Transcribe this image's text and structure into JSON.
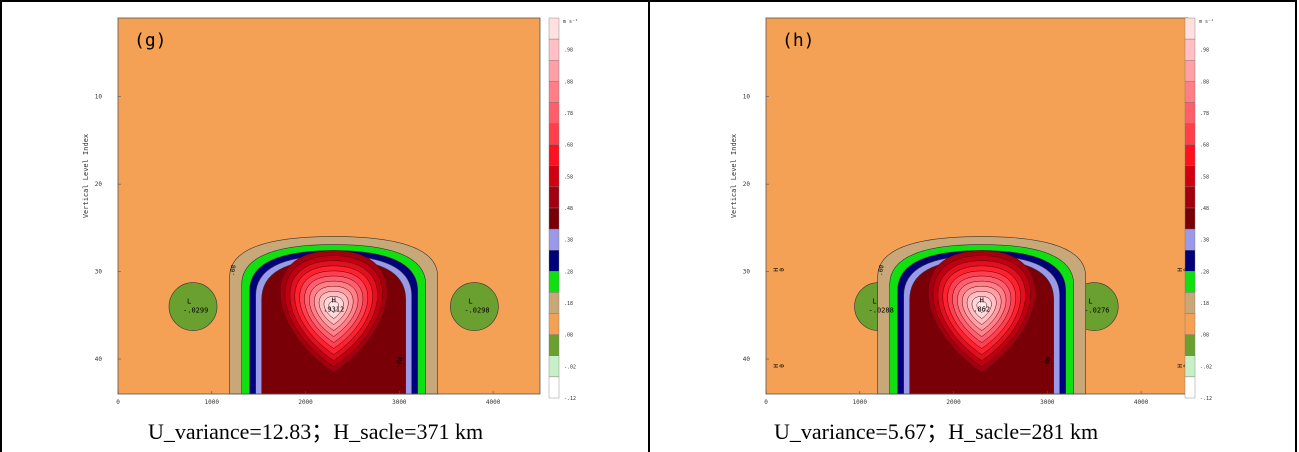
{
  "panels": [
    {
      "id": "g",
      "label": "(g)",
      "caption": "U_variance=12.83；H_sacle=371 km",
      "center_label": "H",
      "center_value": ".9312",
      "left_low": {
        "label": "L",
        "value": "-.0299"
      },
      "right_low": {
        "label": "L",
        "value": "-.0298"
      },
      "contour_labels": [
        ".08",
        ".08"
      ],
      "edge_labels": []
    },
    {
      "id": "h",
      "label": "(h)",
      "caption": "U_variance=5.67；H_sacle=281 km",
      "center_label": "H",
      "center_value": ".862",
      "left_low": {
        "label": "L",
        "value": "-.0288"
      },
      "right_low": {
        "label": "L",
        "value": "-.0276"
      },
      "contour_labels": [
        ".00",
        ".00"
      ],
      "edge_labels": [
        "H",
        "0",
        "H",
        "0",
        "H",
        "0",
        "H",
        "0"
      ]
    }
  ],
  "chart_data": [
    {
      "type": "heatmap",
      "panel": "(g)",
      "ylabel": "Vertical Level Index",
      "xlabel": "",
      "xlim": [
        0,
        4500
      ],
      "ylim": [
        44,
        1
      ],
      "x_ticks": [
        "0",
        "1000",
        "2000",
        "3000",
        "4000"
      ],
      "y_ticks": [
        "10",
        "20",
        "30",
        "40"
      ],
      "max": {
        "x": 2300,
        "y": 34,
        "value": 0.9312
      },
      "min_left": {
        "x": 800,
        "y": 34,
        "value": -0.0299
      },
      "min_right": {
        "x": 3800,
        "y": 34,
        "value": -0.0298
      },
      "colorbar_unit": "m s⁻¹",
      "colorbar_ticks": [
        ".98",
        ".88",
        ".78",
        ".68",
        ".58",
        ".48",
        ".38",
        ".28",
        ".18",
        ".08",
        "-.02",
        "-.12"
      ],
      "colorbar_colors": [
        "#ffe0e0",
        "#ffbfc4",
        "#ff9fa6",
        "#ff7f88",
        "#ff5f6a",
        "#ff3f4c",
        "#ff1020",
        "#d00010",
        "#a00010",
        "#7a0008",
        "#9a9ae8",
        "#00007a",
        "#10e010",
        "#c8a878",
        "#f4a055",
        "#6aa030",
        "#c8f0c8",
        "#ffffff"
      ]
    },
    {
      "type": "heatmap",
      "panel": "(h)",
      "ylabel": "Vertical Level Index",
      "xlabel": "",
      "xlim": [
        0,
        4500
      ],
      "ylim": [
        44,
        1
      ],
      "x_ticks": [
        "0",
        "1000",
        "2000",
        "3000",
        "4000"
      ],
      "y_ticks": [
        "10",
        "20",
        "30",
        "40"
      ],
      "max": {
        "x": 2300,
        "y": 34,
        "value": 0.862
      },
      "min_left": {
        "x": 1200,
        "y": 34,
        "value": -0.0288
      },
      "min_right": {
        "x": 3500,
        "y": 34,
        "value": -0.0276
      },
      "colorbar_unit": "m s⁻¹",
      "colorbar_ticks": [
        ".98",
        ".88",
        ".78",
        ".68",
        ".58",
        ".48",
        ".38",
        ".28",
        ".18",
        ".08",
        "-.02",
        "-.12"
      ],
      "colorbar_colors": [
        "#ffe0e0",
        "#ffbfc4",
        "#ff9fa6",
        "#ff7f88",
        "#ff5f6a",
        "#ff3f4c",
        "#ff1020",
        "#d00010",
        "#a00010",
        "#7a0008",
        "#9a9ae8",
        "#00007a",
        "#10e010",
        "#c8a878",
        "#f4a055",
        "#6aa030",
        "#c8f0c8",
        "#ffffff"
      ]
    }
  ]
}
